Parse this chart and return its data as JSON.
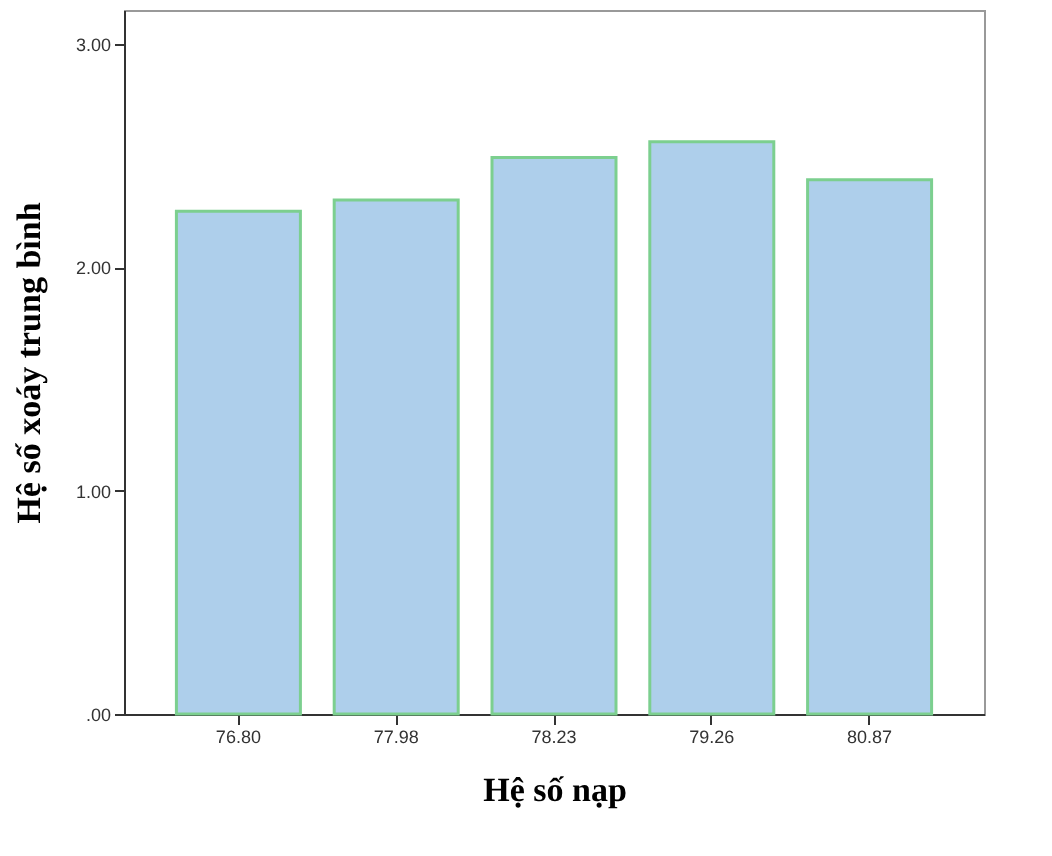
{
  "chart_data": {
    "type": "bar",
    "xlabel": "Hệ số nạp",
    "ylabel": "Hệ số xoáy trung bình",
    "categories": [
      "76.80",
      "77.98",
      "78.23",
      "79.26",
      "80.87"
    ],
    "values": [
      2.25,
      2.3,
      2.49,
      2.56,
      2.39
    ],
    "color": "#aecfeb",
    "ylim": [
      0,
      3.15
    ],
    "yticks": [
      {
        "value": 0,
        "label": ".00"
      },
      {
        "value": 1,
        "label": "1.00"
      },
      {
        "value": 2,
        "label": "2.00"
      },
      {
        "value": 3,
        "label": "3.00"
      }
    ],
    "grid": false
  }
}
